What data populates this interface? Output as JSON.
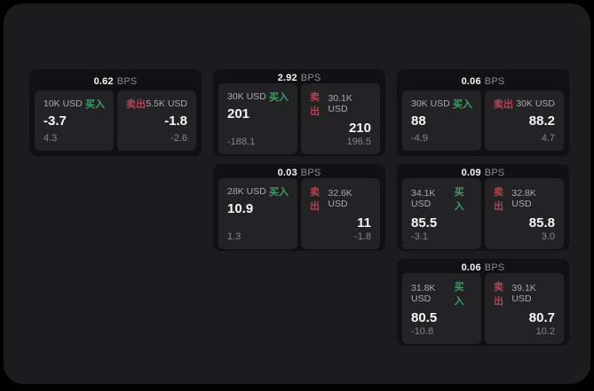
{
  "labels": {
    "buy": "买入",
    "sell": "卖出",
    "bps_suffix": "BPS"
  },
  "colors": {
    "background": "#000000",
    "panel": "#1c1c1e",
    "card": "#111113",
    "tile": "#232326",
    "buy": "#3f9e67",
    "sell": "#b04552",
    "value_text": "#f7f7f8",
    "muted_text": "#86868b"
  },
  "cards": [
    {
      "bps": "0.62",
      "buy": {
        "size": "10K USD",
        "value": "-3.7",
        "delta": "4.3"
      },
      "sell": {
        "size": "5.5K USD",
        "value": "-1.8",
        "delta": "-2.6"
      }
    },
    {
      "bps": "2.92",
      "buy": {
        "size": "30K USD",
        "value": "201",
        "delta": "-188.1"
      },
      "sell": {
        "size": "30.1K USD",
        "value": "210",
        "delta": "196.5"
      }
    },
    {
      "bps": "0.06",
      "buy": {
        "size": "30K USD",
        "value": "88",
        "delta": "-4.9"
      },
      "sell": {
        "size": "30K USD",
        "value": "88.2",
        "delta": "4.7"
      }
    },
    {
      "bps": "0.03",
      "buy": {
        "size": "28K USD",
        "value": "10.9",
        "delta": "1.3"
      },
      "sell": {
        "size": "32.6K USD",
        "value": "11",
        "delta": "-1.8"
      }
    },
    {
      "bps": "0.09",
      "buy": {
        "size": "34.1K USD",
        "value": "85.5",
        "delta": "-3.1"
      },
      "sell": {
        "size": "32.8K USD",
        "value": "85.8",
        "delta": "3.0"
      }
    },
    {
      "bps": "0.06",
      "buy": {
        "size": "31.8K USD",
        "value": "80.5",
        "delta": "-10.8"
      },
      "sell": {
        "size": "39.1K USD",
        "value": "80.7",
        "delta": "10.2"
      }
    }
  ]
}
